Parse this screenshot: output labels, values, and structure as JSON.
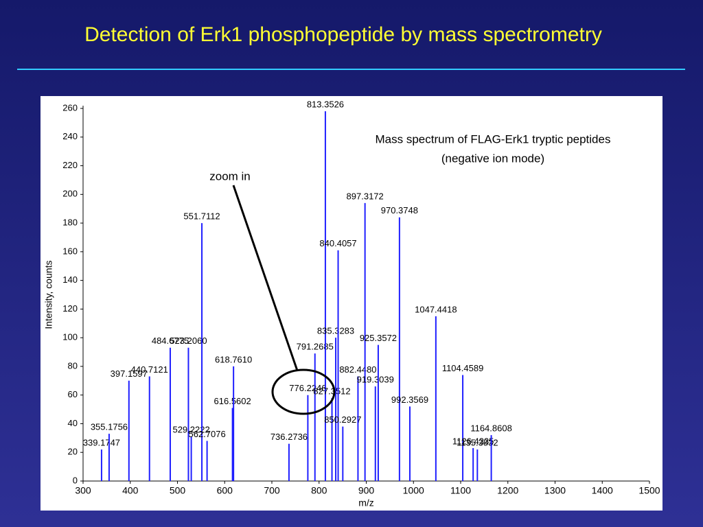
{
  "slide_title": "Detection of Erk1 phosphopeptide by mass spectrometry",
  "chart_data": {
    "type": "stem",
    "xlabel": "m/z",
    "ylabel": "Intensity, counts",
    "annotations": [
      "Mass spectrum of FLAG-Erk1 tryptic peptides",
      "(negative ion mode)",
      "zoom in"
    ],
    "x": [
      339.1747,
      355.1756,
      397.1597,
      440.7121,
      484.6775,
      523.206,
      529.2222,
      551.7112,
      562.7076,
      616.5602,
      618.761,
      736.2736,
      776.2246,
      791.2685,
      813.3526,
      827.3512,
      835.3283,
      840.4057,
      850.2927,
      882.448,
      897.3172,
      919.3039,
      925.3572,
      970.3748,
      992.3569,
      1047.4418,
      1104.4589,
      1126.4335,
      1135.3832,
      1164.8608
    ],
    "x_labels": [
      "339.1747",
      "355.1756",
      "397.1597",
      "440.7121",
      "484.6775",
      "523.2060",
      "529.2222",
      "551.7112",
      "562.7076",
      "616.5602",
      "618.7610",
      "736.2736",
      "776.2246",
      "791.2685",
      "813.3526",
      "827.3512",
      "835.3283",
      "840.4057",
      "850.2927",
      "882.4480",
      "897.3172",
      "919.3039",
      "925.3572",
      "970.3748",
      "992.3569",
      "1047.4418",
      "1104.4589",
      "1126.4335",
      "1135.3832",
      "1164.8608"
    ],
    "values": [
      22,
      33,
      70,
      73,
      93,
      93,
      31,
      180,
      28,
      51,
      80,
      26,
      60,
      89,
      258,
      58,
      100,
      161,
      38,
      73,
      194,
      66,
      95,
      184,
      52,
      115,
      74,
      23,
      22,
      32
    ],
    "color": "#1f1fff",
    "xlim": [
      300,
      1500
    ],
    "xticks": [
      300,
      400,
      500,
      600,
      700,
      800,
      900,
      1000,
      1100,
      1200,
      1300,
      1400,
      1500
    ],
    "ylim": [
      0,
      260
    ],
    "yticks": [
      0,
      20,
      40,
      60,
      80,
      100,
      120,
      140,
      160,
      180,
      200,
      220,
      240,
      260
    ]
  }
}
